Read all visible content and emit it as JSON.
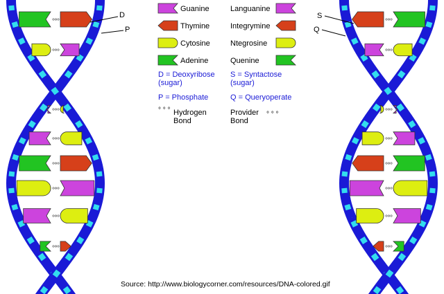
{
  "labels": {
    "d": "D",
    "p": "P",
    "s": "S",
    "q": "Q"
  },
  "legend": {
    "left_bases": [
      {
        "name": "Guanine",
        "shape": "guanine",
        "color": "#cc44dd"
      },
      {
        "name": "Thymine",
        "shape": "thymine",
        "color": "#d6401a"
      },
      {
        "name": "Cytosine",
        "shape": "cytosine",
        "color": "#ddee11"
      },
      {
        "name": "Adenine",
        "shape": "adenine",
        "color": "#22c422"
      }
    ],
    "right_bases": [
      {
        "name": "Languanine",
        "shape": "guanine",
        "color": "#cc44dd"
      },
      {
        "name": "Integrymine",
        "shape": "thymine",
        "color": "#d6401a"
      },
      {
        "name": "Ntegrosine",
        "shape": "cytosine",
        "color": "#ddee11"
      },
      {
        "name": "Quenine",
        "shape": "adenine",
        "color": "#22c422"
      }
    ],
    "sugar_left_line1": "D = Deoxyribose",
    "sugar_left_line2": "(sugar)",
    "phosphate_left": "P = Phosphate",
    "sugar_right_line1": "S = Syntactose",
    "sugar_right_line2": "(sugar)",
    "phosphate_right": "Q = Queryoperate",
    "bond_left_line1": "Hydrogen",
    "bond_left_line2": "Bond",
    "bond_right_line1": "Provider",
    "bond_right_line2": "Bond",
    "bond_dots": "° ° °"
  },
  "colors": {
    "backbone": "#1a1ad6",
    "sugar_segment": "#33ddee",
    "guanine": "#cc44dd",
    "thymine": "#d6401a",
    "cytosine": "#ddee11",
    "adenine": "#22c422",
    "outline": "#333333"
  },
  "source": "Source: http://www.biologycorner.com/resources/DNA-colored.gif"
}
